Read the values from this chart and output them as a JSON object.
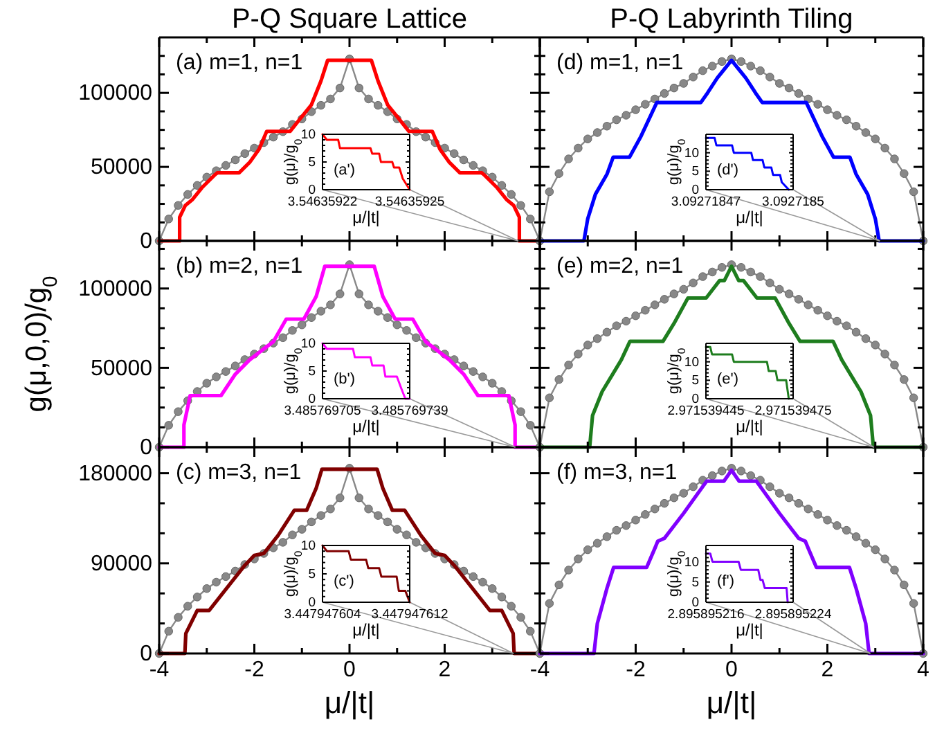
{
  "chart_data": [
    {
      "type": "line",
      "title": "P-Q Square Lattice",
      "annotations": [
        "(a) m=1, n=1"
      ],
      "xlim": [
        -4,
        4
      ],
      "ylim": [
        0,
        137500
      ],
      "xticks": [
        -4,
        {
          "value": -3,
          "label": null
        },
        -2,
        {
          "value": -1,
          "label": null
        },
        0,
        {
          "value": 1,
          "label": null
        },
        2,
        {
          "value": 3,
          "label": null
        },
        4
      ],
      "yticks": [
        0,
        {
          "value": 12500,
          "label": null
        },
        {
          "value": 25000,
          "label": null
        },
        {
          "value": 37500,
          "label": null
        },
        50000,
        {
          "value": 62500,
          "label": null
        },
        {
          "value": 75000,
          "label": null
        },
        {
          "value": 87500,
          "label": null
        },
        100000,
        {
          "value": 112500,
          "label": null
        },
        {
          "value": 125000,
          "label": null
        }
      ],
      "tick_labels": "y",
      "series": [
        {
          "color": "#888888",
          "marker": "circle",
          "x": [
            -4,
            -3.8,
            -3.6,
            -3.4,
            -3.2,
            -3,
            -2.8,
            -2.6,
            -2.4,
            -2.2,
            -2,
            -1.8,
            -1.6,
            -1.4,
            -1.2,
            -1,
            -0.8,
            -0.6,
            -0.4,
            -0.2,
            0,
            0.2,
            0.4,
            0.6,
            0.8,
            1,
            1.2,
            1.4,
            1.6,
            1.8,
            2,
            2.2,
            2.4,
            2.6,
            2.8,
            3,
            3.2,
            3.4,
            3.6,
            3.8,
            4
          ],
          "values": [
            0,
            14800,
            24000,
            31400,
            37500,
            43100,
            47400,
            51000,
            54700,
            59000,
            62700,
            66400,
            70100,
            73800,
            78700,
            82400,
            87300,
            91600,
            95900,
            103300,
            123000,
            103300,
            95900,
            91600,
            87300,
            82400,
            78700,
            73800,
            70100,
            66400,
            62700,
            59000,
            54700,
            51000,
            47400,
            43100,
            37500,
            31400,
            24000,
            14800,
            0
          ]
        },
        {
          "color": "#ff0000",
          "x": [
            -4,
            -3.57,
            -3.57,
            -3.45,
            -3.3,
            -3.1,
            -2.85,
            -2.78,
            -2.32,
            -2.1,
            -1.9,
            -1.74,
            -1.25,
            -1.05,
            -0.8,
            -0.6,
            -0.46,
            0.46,
            0.6,
            0.8,
            1.05,
            1.25,
            1.74,
            1.9,
            2.1,
            2.32,
            2.78,
            2.85,
            3.1,
            3.3,
            3.45,
            3.57,
            3.57,
            4
          ],
          "values": [
            0,
            0,
            16000,
            24000,
            28000,
            36000,
            44000,
            46000,
            46000,
            53000,
            62000,
            74000,
            74000,
            82000,
            92000,
            108000,
            122000,
            122000,
            108000,
            92000,
            82000,
            74000,
            74000,
            62000,
            53000,
            46000,
            46000,
            44000,
            36000,
            28000,
            24000,
            16000,
            0,
            0
          ]
        }
      ]
    },
    {
      "type": "line",
      "annotations": [
        "(a')"
      ],
      "xlabel": "μ/|t|",
      "ylabel": "g(μ)/g$_{0}$",
      "xlim": [
        3.54635922,
        3.54635925
      ],
      "ylim": [
        0,
        10
      ],
      "xticks": [
        3.54635922,
        3.54635925
      ],
      "yticks": [
        0,
        {
          "value": 1,
          "label": null
        },
        {
          "value": 2,
          "label": null
        },
        {
          "value": 3,
          "label": null
        },
        {
          "value": 4,
          "label": null
        },
        5,
        {
          "value": 6,
          "label": null
        },
        {
          "value": 7,
          "label": null
        },
        {
          "value": 8,
          "label": null
        },
        {
          "value": 9,
          "label": null
        },
        10
      ],
      "series": [
        {
          "color": "#ff0000",
          "x": [
            3.54635922,
            3.5463592215,
            3.5463592254,
            3.546359226,
            3.5463592365,
            3.5463592371,
            3.5463592395,
            3.5463592401,
            3.546359244,
            3.5463592446,
            3.5463592464,
            3.5463592476,
            3.54635925
          ],
          "values": [
            10,
            9,
            9,
            7.5,
            7.5,
            6.5,
            6.5,
            5,
            5,
            4,
            4,
            2,
            0
          ]
        }
      ]
    },
    {
      "type": "line",
      "title": "P-Q Labyrinth Tiling",
      "annotations": [
        "(d) m=1, n=1"
      ],
      "xlim": [
        -4,
        4
      ],
      "ylim": [
        0,
        137500
      ],
      "xticks": [
        -4,
        {
          "value": -3,
          "label": null
        },
        -2,
        {
          "value": -1,
          "label": null
        },
        0,
        {
          "value": 1,
          "label": null
        },
        2,
        {
          "value": 3,
          "label": null
        },
        4
      ],
      "yticks": [
        0,
        {
          "value": 12500,
          "label": null
        },
        {
          "value": 25000,
          "label": null
        },
        {
          "value": 37500,
          "label": null
        },
        50000,
        {
          "value": 62500,
          "label": null
        },
        {
          "value": 75000,
          "label": null
        },
        {
          "value": 87500,
          "label": null
        },
        100000,
        {
          "value": 112500,
          "label": null
        },
        {
          "value": 125000,
          "label": null
        }
      ],
      "tick_labels": false,
      "series": [
        {
          "color": "#888888",
          "marker": "circle",
          "x": [
            -4,
            -3.8,
            -3.6,
            -3.4,
            -3.2,
            -3,
            -2.8,
            -2.6,
            -2.4,
            -2.2,
            -2,
            -1.8,
            -1.6,
            -1.4,
            -1.2,
            -1,
            -0.8,
            -0.6,
            -0.4,
            -0.2,
            0,
            0.2,
            0.4,
            0.6,
            0.8,
            1,
            1.2,
            1.4,
            1.6,
            1.8,
            2,
            2.2,
            2.4,
            2.6,
            2.8,
            3,
            3.2,
            3.4,
            3.6,
            3.8,
            4
          ],
          "values": [
            0,
            33200,
            45500,
            55400,
            62700,
            68900,
            73200,
            77500,
            81800,
            84900,
            88600,
            92300,
            95900,
            99600,
            103300,
            106400,
            110700,
            115000,
            118100,
            121200,
            123000,
            121200,
            118100,
            115000,
            110700,
            106400,
            103300,
            99600,
            95900,
            92300,
            88600,
            84900,
            81800,
            77500,
            73200,
            68900,
            62700,
            55400,
            45500,
            33200,
            0
          ]
        },
        {
          "color": "#0000ff",
          "x": [
            -4,
            -3.08,
            -3,
            -2.84,
            -2.6,
            -2.47,
            -2.13,
            -1.9,
            -1.56,
            -0.64,
            -0.5,
            -0.3,
            -0.2,
            0,
            0.2,
            0.3,
            0.5,
            0.64,
            1.56,
            1.9,
            2.13,
            2.47,
            2.6,
            2.84,
            3,
            3.08,
            4
          ],
          "values": [
            0,
            0,
            15000,
            31500,
            45000,
            56500,
            56500,
            70000,
            93500,
            93500,
            100000,
            110000,
            114000,
            122000,
            114000,
            110000,
            100000,
            93500,
            93500,
            70000,
            56500,
            56500,
            45000,
            31500,
            15000,
            0,
            0
          ]
        }
      ]
    },
    {
      "type": "line",
      "annotations": [
        "(d')"
      ],
      "xlabel": "μ/|t|",
      "ylabel": "g(μ)/g$_{0}$",
      "xlim": [
        3.09271847,
        3.0927185
      ],
      "ylim": [
        0,
        15
      ],
      "xticks": [
        3.09271847,
        3.0927185
      ],
      "yticks": [
        0,
        {
          "value": 1,
          "label": null
        },
        {
          "value": 2,
          "label": null
        },
        {
          "value": 3,
          "label": null
        },
        {
          "value": 4,
          "label": null
        },
        5,
        {
          "value": 6,
          "label": null
        },
        {
          "value": 7,
          "label": null
        },
        {
          "value": 8,
          "label": null
        },
        {
          "value": 9,
          "label": null
        },
        10,
        {
          "value": 11,
          "label": null
        },
        {
          "value": 12,
          "label": null
        },
        {
          "value": 13,
          "label": null
        },
        {
          "value": 14,
          "label": null
        }
      ],
      "series": [
        {
          "color": "#0000ff",
          "x": [
            3.09271847,
            3.092718473,
            3.0927184736,
            3.092718479,
            3.0927184796,
            3.0927184856,
            3.0927184862,
            3.0927184895,
            3.0927184901,
            3.0927184925,
            3.0927184931,
            3.0927184955,
            3.0927184961,
            3.0927184985
          ],
          "values": [
            14,
            14,
            12,
            12,
            10,
            10,
            8,
            8,
            6,
            6,
            4,
            4,
            2,
            0
          ]
        }
      ]
    },
    {
      "type": "line",
      "annotations": [
        "(b) m=2, n=1"
      ],
      "ylabel": "g(μ,0,0)/g$_{0}$",
      "xlim": [
        -4,
        4
      ],
      "ylim": [
        0,
        130000
      ],
      "xticks": [
        -4,
        {
          "value": -3,
          "label": null
        },
        -2,
        {
          "value": -1,
          "label": null
        },
        0,
        {
          "value": 1,
          "label": null
        },
        2,
        {
          "value": 3,
          "label": null
        },
        4
      ],
      "yticks": [
        0,
        {
          "value": 12500,
          "label": null
        },
        {
          "value": 25000,
          "label": null
        },
        {
          "value": 37500,
          "label": null
        },
        50000,
        {
          "value": 62500,
          "label": null
        },
        {
          "value": 75000,
          "label": null
        },
        {
          "value": 87500,
          "label": null
        },
        100000,
        {
          "value": 112500,
          "label": null
        },
        {
          "value": 125000,
          "label": null
        }
      ],
      "tick_labels": "y",
      "series": [
        {
          "color": "#888888",
          "marker": "circle",
          "x": [
            -4,
            -3.8,
            -3.6,
            -3.4,
            -3.2,
            -3,
            -2.8,
            -2.6,
            -2.4,
            -2.2,
            -2,
            -1.8,
            -1.6,
            -1.4,
            -1.2,
            -1,
            -0.8,
            -0.6,
            -0.4,
            -0.2,
            0,
            0.2,
            0.4,
            0.6,
            0.8,
            1,
            1.2,
            1.4,
            1.6,
            1.8,
            2,
            2.2,
            2.4,
            2.6,
            2.8,
            3,
            3.2,
            3.4,
            3.6,
            3.8,
            4
          ],
          "values": [
            0,
            13800,
            22400,
            29300,
            35100,
            40300,
            44300,
            47700,
            51200,
            55200,
            58700,
            62100,
            65600,
            69000,
            73600,
            77100,
            81700,
            85700,
            89700,
            96600,
            115000,
            96600,
            89700,
            85700,
            81700,
            77100,
            73600,
            69000,
            65600,
            62100,
            58700,
            55200,
            51200,
            47700,
            44300,
            40300,
            35100,
            29300,
            22400,
            13800,
            0
          ]
        },
        {
          "color": "#ff00ff",
          "x": [
            -4,
            -3.48,
            -3.48,
            -3.38,
            -3.35,
            -2.7,
            -2.4,
            -2.1,
            -1.8,
            -1.6,
            -1.33,
            -0.96,
            -0.7,
            -0.52,
            0.52,
            0.7,
            0.96,
            1.33,
            1.6,
            1.8,
            2.1,
            2.4,
            2.7,
            3.35,
            3.38,
            3.48,
            3.48,
            4
          ],
          "values": [
            0,
            0,
            14000,
            28000,
            32500,
            32500,
            46000,
            55000,
            62000,
            66500,
            80700,
            80700,
            95000,
            114000,
            114000,
            95000,
            80700,
            80700,
            66500,
            62000,
            55000,
            46000,
            32500,
            32500,
            28000,
            14000,
            0,
            0
          ]
        }
      ]
    },
    {
      "type": "line",
      "annotations": [
        "(b')"
      ],
      "xlabel": "μ/|t|",
      "ylabel": "g(μ)/g$_{0}$",
      "xlim": [
        3.485769705,
        3.485769739
      ],
      "ylim": [
        0,
        10
      ],
      "xticks": [
        3.485769705,
        3.485769739
      ],
      "yticks": [
        0,
        {
          "value": 1,
          "label": null
        },
        {
          "value": 2,
          "label": null
        },
        {
          "value": 3,
          "label": null
        },
        {
          "value": 4,
          "label": null
        },
        5,
        {
          "value": 6,
          "label": null
        },
        {
          "value": 7,
          "label": null
        },
        {
          "value": 8,
          "label": null
        },
        {
          "value": 9,
          "label": null
        },
        10
      ],
      "series": [
        {
          "color": "#ff00ff",
          "x": [
            3.485769705,
            3.4857697067,
            3.4857697169,
            3.4857697176,
            3.4857697237,
            3.4857697244,
            3.4857697288,
            3.4857697295,
            3.485769734,
            3.4857697356,
            3.4857697373,
            3.485769739
          ],
          "values": [
            10,
            9,
            9,
            7.5,
            7.5,
            6,
            6,
            4,
            4,
            2,
            0,
            0
          ]
        }
      ]
    },
    {
      "type": "line",
      "annotations": [
        "(e) m=2, n=1"
      ],
      "xlim": [
        -4,
        4
      ],
      "ylim": [
        0,
        130000
      ],
      "xticks": [
        -4,
        {
          "value": -3,
          "label": null
        },
        -2,
        {
          "value": -1,
          "label": null
        },
        0,
        {
          "value": 1,
          "label": null
        },
        2,
        {
          "value": 3,
          "label": null
        },
        4
      ],
      "yticks": [
        0,
        {
          "value": 12500,
          "label": null
        },
        {
          "value": 25000,
          "label": null
        },
        {
          "value": 37500,
          "label": null
        },
        50000,
        {
          "value": 62500,
          "label": null
        },
        {
          "value": 75000,
          "label": null
        },
        {
          "value": 87500,
          "label": null
        },
        100000,
        {
          "value": 112500,
          "label": null
        },
        {
          "value": 125000,
          "label": null
        }
      ],
      "tick_labels": false,
      "series": [
        {
          "color": "#888888",
          "marker": "circle",
          "x": [
            -4,
            -3.8,
            -3.6,
            -3.4,
            -3.2,
            -3,
            -2.8,
            -2.6,
            -2.4,
            -2.2,
            -2,
            -1.8,
            -1.6,
            -1.4,
            -1.2,
            -1,
            -0.8,
            -0.6,
            -0.4,
            -0.2,
            0,
            0.2,
            0.4,
            0.6,
            0.8,
            1,
            1.2,
            1.4,
            1.6,
            1.8,
            2,
            2.2,
            2.4,
            2.6,
            2.8,
            3,
            3.2,
            3.4,
            3.6,
            3.8,
            4
          ],
          "values": [
            0,
            31100,
            42600,
            51800,
            58700,
            64400,
            68400,
            72500,
            76500,
            79400,
            82800,
            86300,
            89700,
            93200,
            96600,
            99500,
            103500,
            107500,
            110400,
            113300,
            115000,
            113300,
            110400,
            107500,
            103500,
            99500,
            96600,
            93200,
            89700,
            86300,
            82800,
            79400,
            76500,
            72500,
            68400,
            64400,
            58700,
            51800,
            42600,
            31100,
            0
          ]
        },
        {
          "color": "#1e7d1e",
          "x": [
            -4,
            -2.96,
            -2.9,
            -2.7,
            -2.5,
            -2.3,
            -2.12,
            -1.43,
            -1.2,
            -0.91,
            -0.53,
            -0.25,
            -0.15,
            0,
            0.15,
            0.25,
            0.53,
            0.91,
            1.2,
            1.43,
            2.12,
            2.3,
            2.5,
            2.7,
            2.9,
            2.96,
            4
          ],
          "values": [
            0,
            0,
            20000,
            35000,
            45000,
            55000,
            66700,
            66700,
            78000,
            94000,
            94000,
            105000,
            105000,
            114000,
            105000,
            105000,
            94000,
            94000,
            78000,
            66700,
            66700,
            55000,
            45000,
            35000,
            20000,
            0,
            0
          ]
        }
      ]
    },
    {
      "type": "line",
      "annotations": [
        "(e')"
      ],
      "xlabel": "μ/|t|",
      "ylabel": "g(μ)/g$_{0}$",
      "xlim": [
        2.971539445,
        2.971539475
      ],
      "ylim": [
        0,
        15
      ],
      "xticks": [
        2.971539445,
        2.971539475
      ],
      "yticks": [
        0,
        {
          "value": 1,
          "label": null
        },
        {
          "value": 2,
          "label": null
        },
        {
          "value": 3,
          "label": null
        },
        {
          "value": 4,
          "label": null
        },
        5,
        {
          "value": 6,
          "label": null
        },
        {
          "value": 7,
          "label": null
        },
        {
          "value": 8,
          "label": null
        },
        {
          "value": 9,
          "label": null
        },
        10,
        {
          "value": 11,
          "label": null
        },
        {
          "value": 12,
          "label": null
        },
        {
          "value": 13,
          "label": null
        },
        {
          "value": 14,
          "label": null
        }
      ],
      "series": [
        {
          "color": "#1e7d1e",
          "x": [
            2.971539445,
            2.9715394465,
            2.9715394471,
            2.971539454,
            2.9715394546,
            2.971539466,
            2.9715394666,
            2.971539469,
            2.9715394696,
            2.9715394726,
            2.9715394735
          ],
          "values": [
            14,
            14,
            12,
            12,
            10,
            10,
            7.5,
            7.5,
            5,
            5,
            0
          ]
        }
      ]
    },
    {
      "type": "line",
      "annotations": [
        "(c) m=3, n=1"
      ],
      "xlabel": "μ/|t|",
      "xlim": [
        -4,
        4
      ],
      "ylim": [
        0,
        206000
      ],
      "xticks": [
        -4,
        {
          "value": -3,
          "label": null
        },
        -2,
        {
          "value": -1,
          "label": null
        },
        0,
        {
          "value": 1,
          "label": null
        },
        2,
        {
          "value": 3,
          "label": null
        },
        {
          "value": 4,
          "label": null
        }
      ],
      "yticks": [
        0,
        {
          "value": 30000,
          "label": null
        },
        {
          "value": 60000,
          "label": null
        },
        90000,
        {
          "value": 120000,
          "label": null
        },
        {
          "value": 150000,
          "label": null
        },
        180000
      ],
      "series": [
        {
          "color": "#888888",
          "marker": "circle",
          "x": [
            -4,
            -3.8,
            -3.6,
            -3.4,
            -3.2,
            -3,
            -2.8,
            -2.6,
            -2.4,
            -2.2,
            -2,
            -1.8,
            -1.6,
            -1.4,
            -1.2,
            -1,
            -0.8,
            -0.6,
            -0.4,
            -0.2,
            0,
            0.2,
            0.4,
            0.6,
            0.8,
            1,
            1.2,
            1.4,
            1.6,
            1.8,
            2,
            2.2,
            2.4,
            2.6,
            2.8,
            3,
            3.2,
            3.4,
            3.6,
            3.8,
            4
          ],
          "values": [
            0,
            22200,
            36100,
            47200,
            56400,
            64800,
            71200,
            76800,
            82300,
            88800,
            94400,
            99900,
            105500,
            111000,
            118400,
            124000,
            131400,
            137800,
            144300,
            155400,
            185000,
            155400,
            144300,
            137800,
            131400,
            124000,
            118400,
            111000,
            105500,
            99900,
            94400,
            88800,
            82300,
            76800,
            71200,
            64800,
            56400,
            47200,
            36100,
            22200,
            0
          ]
        },
        {
          "color": "#800000",
          "x": [
            -4,
            -3.46,
            -3.44,
            -3.2,
            -2.95,
            -2.5,
            -2.2,
            -2,
            -1.8,
            -1.5,
            -1.16,
            -0.9,
            -0.7,
            -0.58,
            0.58,
            0.7,
            0.9,
            1.16,
            1.5,
            1.8,
            2,
            2.2,
            2.5,
            2.95,
            3.2,
            3.44,
            3.46,
            4
          ],
          "values": [
            0,
            0,
            20000,
            43000,
            43000,
            70000,
            88000,
            98000,
            100000,
            118000,
            143000,
            143000,
            165000,
            184000,
            184000,
            165000,
            143000,
            143000,
            118000,
            100000,
            98000,
            88000,
            70000,
            43000,
            43000,
            20000,
            0,
            0
          ]
        }
      ]
    },
    {
      "type": "line",
      "annotations": [
        "(c')"
      ],
      "xlabel": "μ/|t|",
      "ylabel": "g(μ)/g$_{0}$",
      "xlim": [
        3.447947604,
        3.447947612
      ],
      "ylim": [
        0,
        10
      ],
      "xticks": [
        3.447947604,
        3.447947612
      ],
      "yticks": [
        0,
        {
          "value": 1,
          "label": null
        },
        {
          "value": 2,
          "label": null
        },
        {
          "value": 3,
          "label": null
        },
        {
          "value": 4,
          "label": null
        },
        5,
        {
          "value": 6,
          "label": null
        },
        {
          "value": 7,
          "label": null
        },
        {
          "value": 8,
          "label": null
        },
        {
          "value": 9,
          "label": null
        },
        10
      ],
      "series": [
        {
          "color": "#800000",
          "x": [
            3.447947604,
            3.4479476044,
            3.4479476064,
            3.4479476066,
            3.447947608,
            3.4479476082,
            3.4479476092,
            3.4479476094,
            3.4479476108,
            3.447947611,
            3.4479476116,
            3.447947612
          ],
          "values": [
            10,
            9,
            9,
            7.5,
            7.5,
            6,
            6,
            4.5,
            4.5,
            2,
            2,
            0
          ]
        }
      ]
    },
    {
      "type": "line",
      "annotations": [
        "(f) m=3, n=1"
      ],
      "xlabel": "μ/|t|",
      "xlim": [
        -4,
        4
      ],
      "ylim": [
        0,
        206000
      ],
      "xticks": [
        -4,
        {
          "value": -3,
          "label": null
        },
        -2,
        {
          "value": -1,
          "label": null
        },
        0,
        {
          "value": 1,
          "label": null
        },
        2,
        {
          "value": 3,
          "label": null
        },
        4
      ],
      "yticks": [
        0,
        {
          "value": 30000,
          "label": null
        },
        {
          "value": 60000,
          "label": null
        },
        90000,
        {
          "value": 120000,
          "label": null
        },
        {
          "value": 150000,
          "label": null
        },
        180000
      ],
      "tick_labels": "x",
      "series": [
        {
          "color": "#888888",
          "marker": "circle",
          "x": [
            -4,
            -3.8,
            -3.6,
            -3.4,
            -3.2,
            -3,
            -2.8,
            -2.6,
            -2.4,
            -2.2,
            -2,
            -1.8,
            -1.6,
            -1.4,
            -1.2,
            -1,
            -0.8,
            -0.6,
            -0.4,
            -0.2,
            0,
            0.2,
            0.4,
            0.6,
            0.8,
            1,
            1.2,
            1.4,
            1.6,
            1.8,
            2,
            2.2,
            2.4,
            2.6,
            2.8,
            3,
            3.2,
            3.4,
            3.6,
            3.8,
            4
          ],
          "values": [
            0,
            50000,
            68500,
            83300,
            94400,
            103600,
            110100,
            116600,
            123000,
            127700,
            133200,
            138800,
            144300,
            149900,
            155400,
            160000,
            166500,
            173000,
            177600,
            182200,
            185000,
            182200,
            177600,
            173000,
            166500,
            160000,
            155400,
            149900,
            144300,
            138800,
            133200,
            127700,
            123000,
            116600,
            110100,
            103600,
            94400,
            83300,
            68500,
            50000,
            0
          ]
        },
        {
          "color": "#8000ff",
          "x": [
            -4,
            -2.87,
            -2.8,
            -2.6,
            -2.46,
            -1.77,
            -1.6,
            -1.54,
            -1.4,
            -1,
            -0.7,
            -0.52,
            -0.16,
            0,
            0.16,
            0.52,
            0.7,
            1,
            1.4,
            1.54,
            1.6,
            1.77,
            2.46,
            2.6,
            2.8,
            2.87,
            4
          ],
          "values": [
            0,
            0,
            30000,
            65000,
            86000,
            86000,
            105000,
            112000,
            115000,
            140000,
            160000,
            172000,
            172000,
            183000,
            172000,
            172000,
            160000,
            140000,
            115000,
            112000,
            105000,
            86000,
            86000,
            65000,
            30000,
            0,
            0
          ]
        }
      ]
    },
    {
      "type": "line",
      "annotations": [
        "(f')"
      ],
      "xlabel": "μ/|t|",
      "ylabel": "g(μ)/g$_{0}$",
      "xlim": [
        2.895895216,
        2.895895224
      ],
      "ylim": [
        0,
        14
      ],
      "xticks": [
        2.895895216,
        2.895895224
      ],
      "yticks": [
        0,
        {
          "value": 1,
          "label": null
        },
        {
          "value": 2,
          "label": null
        },
        {
          "value": 3,
          "label": null
        },
        {
          "value": 4,
          "label": null
        },
        5,
        {
          "value": 6,
          "label": null
        },
        {
          "value": 7,
          "label": null
        },
        {
          "value": 8,
          "label": null
        },
        {
          "value": 9,
          "label": null
        },
        10,
        {
          "value": 11,
          "label": null
        },
        {
          "value": 12,
          "label": null
        },
        {
          "value": 13,
          "label": null
        }
      ],
      "series": [
        {
          "color": "#8000ff",
          "x": [
            2.895895216,
            2.8958952164,
            2.8958952166,
            2.895895219,
            2.8958952192,
            2.8958952208,
            2.895895221,
            2.8958952212,
            2.8958952214,
            2.8958952234,
            2.8958952235
          ],
          "values": [
            12,
            12,
            10,
            10,
            8,
            8,
            5.5,
            5.5,
            3.5,
            3.5,
            0
          ]
        }
      ]
    }
  ]
}
